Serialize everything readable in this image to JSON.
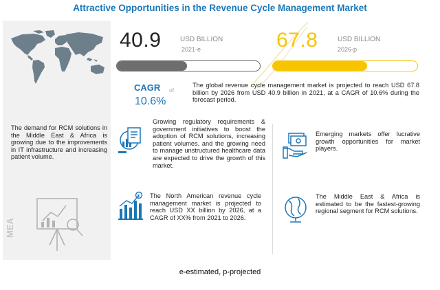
{
  "title": "Attractive Opportunities in the Revenue Cycle Management Market",
  "left_panel": {
    "vertical_label": "MEA",
    "text": "The demand for RCM solutions in the Middle East & Africa is growing due to the improvements in IT infrastructure and increasing patient volume."
  },
  "market": {
    "value_2021": "40.9",
    "unit_2021": "USD BILLION",
    "year_2021": "2021-e",
    "value_2026": "67.8",
    "unit_2026": "USD BILLION",
    "year_2026": "2026-p",
    "cagr_label": "CAGR",
    "cagr_of": "of",
    "cagr_value": "10.6%",
    "summary": "The global revenue cycle management market is projected to reach USD 67.8 billion by 2026 from USD 40.9 billion in 2021, at a CAGR of 10.6% during the forecast period."
  },
  "cards": [
    {
      "icon": "healthcare-data-icon",
      "text": "Growing regulatory requirements & government initiatives to boost the adoption of RCM solutions, increasing patient volumes, and the growing need to manage unstructured healthcare data are expected to drive the growth of this market."
    },
    {
      "icon": "money-hand-icon",
      "text": "Emerging markets offer lucrative growth opportunities for market players."
    },
    {
      "icon": "revenue-growth-icon",
      "text": "The North American revenue cycle management market is projected to reach USD XX billion by 2026, at a CAGR of XX% from 2021 to 2026."
    },
    {
      "icon": "globe-icon",
      "text": "The Middle East & Africa is estimated to be the fastest-growing regional segment for RCM solutions."
    }
  ],
  "footnote": "e-estimated, p-projected",
  "colors": {
    "title": "#1b78b8",
    "bar_2021": "#6e6e6e",
    "bar_2026": "#f7c500",
    "icon": "#1b78b8",
    "map": "#6e7f8c"
  }
}
